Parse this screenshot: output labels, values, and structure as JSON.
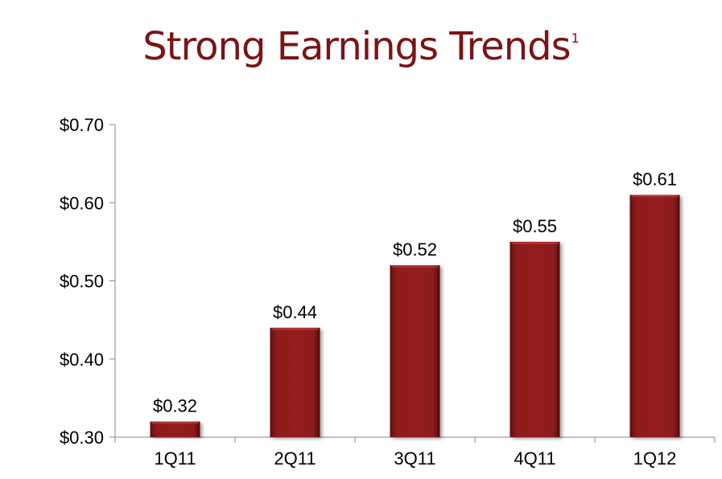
{
  "title": "Strong Earnings Trends",
  "title_superscript": "1",
  "chart_data": {
    "type": "bar",
    "categories": [
      "1Q11",
      "2Q11",
      "3Q11",
      "4Q11",
      "1Q12"
    ],
    "values": [
      0.32,
      0.44,
      0.52,
      0.55,
      0.61
    ],
    "data_labels": [
      "$0.32",
      "$0.44",
      "$0.52",
      "$0.55",
      "$0.61"
    ],
    "ylim": [
      0.3,
      0.7
    ],
    "yticks": [
      0.3,
      0.4,
      0.5,
      0.6,
      0.7
    ],
    "ytick_labels": [
      "$0.30",
      "$0.40",
      "$0.50",
      "$0.60",
      "$0.70"
    ],
    "xlabel": "",
    "ylabel": "",
    "grid": false,
    "legend": "none",
    "bar_color": "#8b1a1c"
  }
}
